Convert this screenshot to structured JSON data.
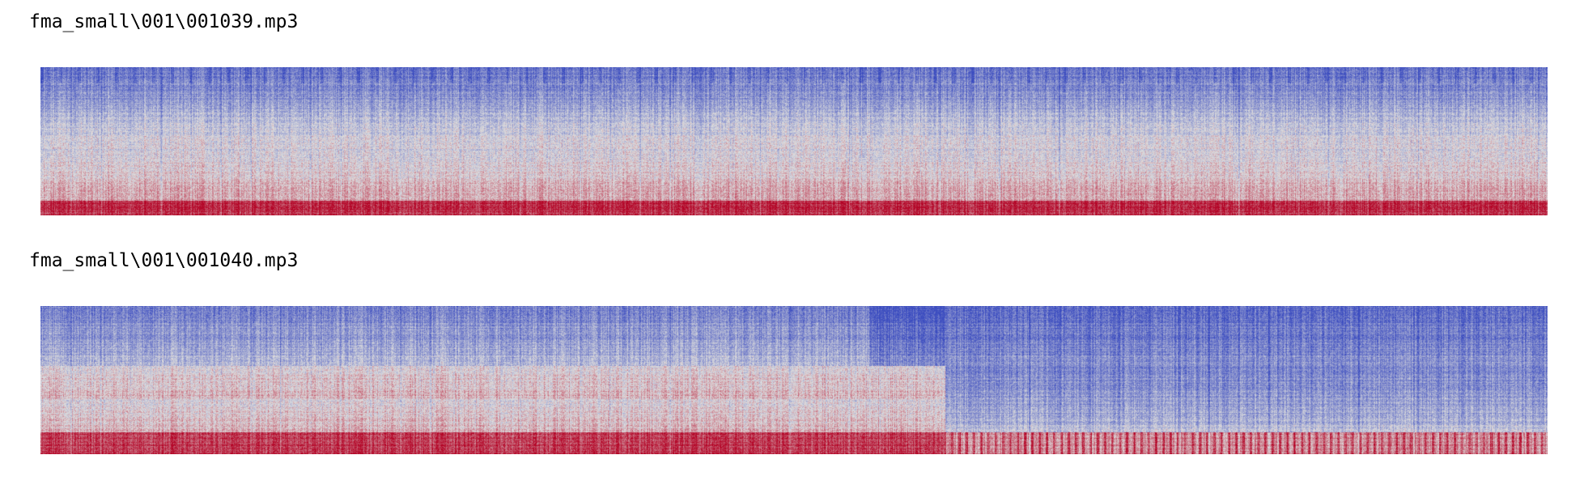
{
  "outputs": [
    {
      "filename": "fma_small\\001\\001039.mp3",
      "colormap": "coolwarm"
    },
    {
      "filename": "fma_small\\001\\001040.mp3",
      "colormap": "coolwarm"
    }
  ],
  "colors": {
    "cool": "#3b4cc0",
    "neutral": "#dddddd",
    "warm": "#b40426",
    "background": "#ffffff"
  }
}
